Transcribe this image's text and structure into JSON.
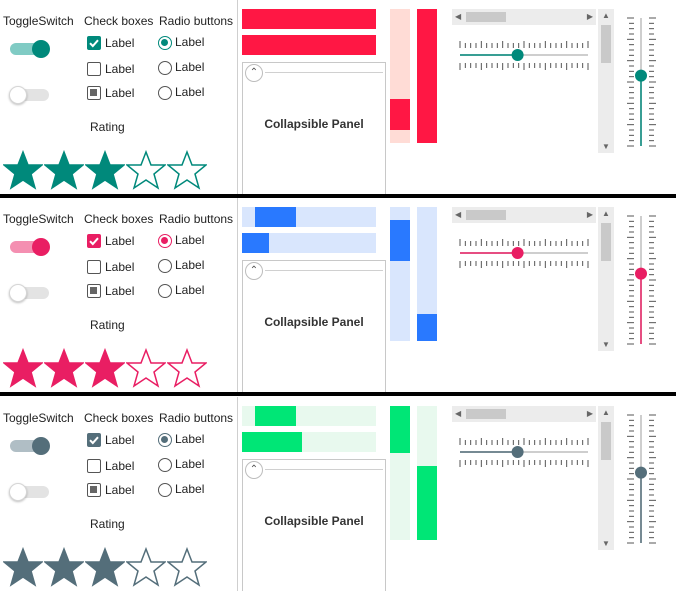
{
  "labels": {
    "toggle_switch": "ToggleSwitch",
    "check_boxes": "Check boxes",
    "radio_buttons": "Radio buttons",
    "option_label": "Label",
    "rating": "Rating",
    "collapsible_panel": "Collapsible Panel"
  },
  "icons": {
    "panel_toggle": "chevron-up-icon",
    "scroll_left": "arrow-left-icon",
    "scroll_right": "arrow-right-icon",
    "scroll_up": "arrow-up-icon",
    "scroll_down": "arrow-down-icon"
  },
  "themes": [
    {
      "accent": "#00897b",
      "accent_light": "#80cbc4",
      "bar_fill": "#ff1744",
      "bar_track": "#ffdcd6",
      "rating": {
        "value": 3,
        "max": 5
      },
      "toggle_on": true,
      "toggle_off": false,
      "checkboxes": [
        "checked",
        "unchecked",
        "indeterminate"
      ],
      "radio_selected": 0,
      "progress_h": [
        {
          "start": 0,
          "end": 1
        },
        {
          "start": 0,
          "end": 1
        }
      ],
      "progress_v": [
        {
          "start": 0.67,
          "end": 0.9
        },
        {
          "start": 0,
          "end": 1
        }
      ],
      "h_slider": 0.45,
      "v_slider": 0.45
    },
    {
      "accent": "#e91e63",
      "accent_light": "#f48fb1",
      "bar_fill": "#2979ff",
      "bar_track": "#d9e6fd",
      "rating": {
        "value": 3,
        "max": 5
      },
      "toggle_on": true,
      "toggle_off": false,
      "checkboxes": [
        "checked",
        "unchecked",
        "indeterminate"
      ],
      "radio_selected": 0,
      "progress_h": [
        {
          "start": 0.1,
          "end": 0.4
        },
        {
          "start": 0,
          "end": 0.2
        }
      ],
      "progress_v": [
        {
          "start": 0.1,
          "end": 0.4
        },
        {
          "start": 0.8,
          "end": 1
        }
      ],
      "h_slider": 0.45,
      "v_slider": 0.45
    },
    {
      "accent": "#546e7a",
      "accent_light": "#b0bec5",
      "bar_fill": "#00e676",
      "bar_track": "#e8f9ee",
      "rating": {
        "value": 3,
        "max": 5
      },
      "toggle_on": true,
      "toggle_off": false,
      "checkboxes": [
        "checked",
        "unchecked",
        "indeterminate"
      ],
      "radio_selected": 0,
      "progress_h": [
        {
          "start": 0.1,
          "end": 0.4
        },
        {
          "start": 0,
          "end": 0.45
        }
      ],
      "progress_v": [
        {
          "start": 0,
          "end": 0.35
        },
        {
          "start": 0.45,
          "end": 1
        }
      ],
      "h_slider": 0.45,
      "v_slider": 0.45
    }
  ]
}
